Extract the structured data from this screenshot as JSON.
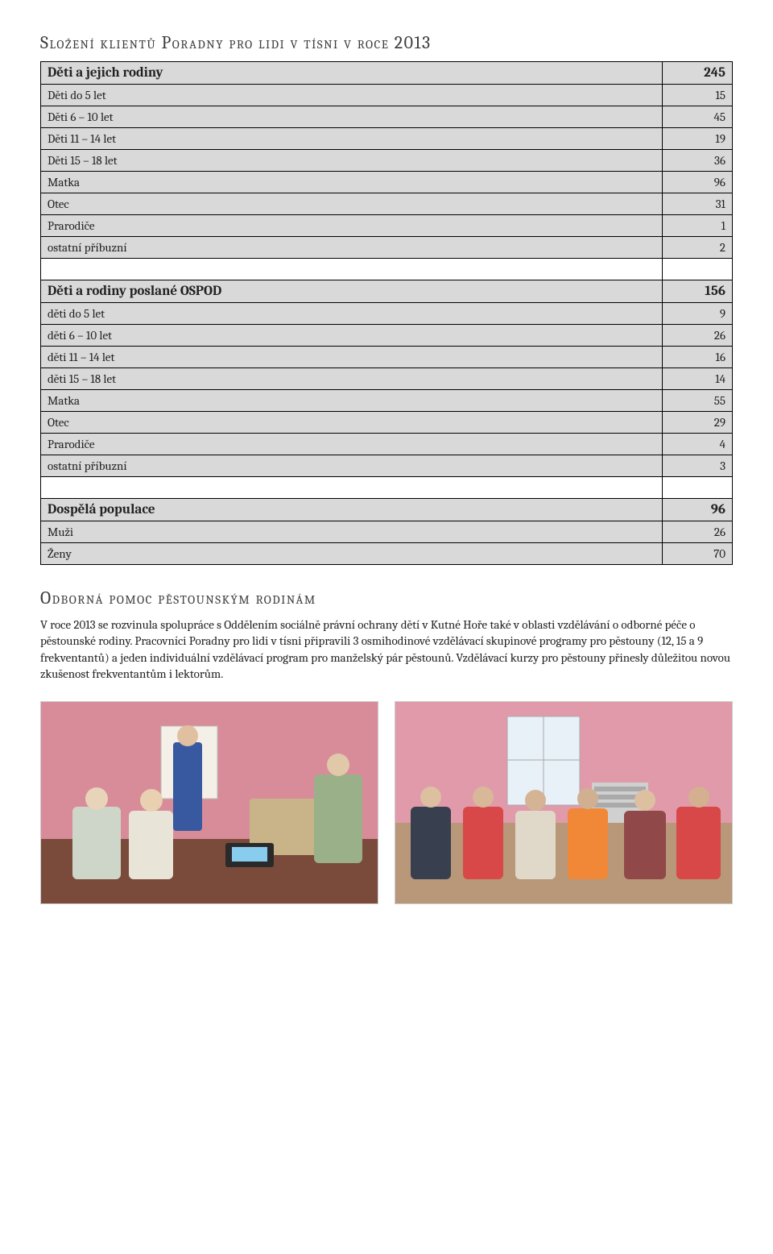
{
  "section1": {
    "title": "Složení klientů Poradny pro lidi v tísni v roce 2013",
    "group1": {
      "header": {
        "label": "Děti a jejich rodiny",
        "value": "245"
      },
      "rows": [
        {
          "label": "Děti do 5 let",
          "value": "15"
        },
        {
          "label": "Děti 6 – 10 let",
          "value": "45"
        },
        {
          "label": "Děti 11 – 14 let",
          "value": "19"
        },
        {
          "label": "Děti 15 – 18 let",
          "value": "36"
        },
        {
          "label": "Matka",
          "value": "96"
        },
        {
          "label": "Otec",
          "value": "31"
        },
        {
          "label": "Prarodiče",
          "value": "1"
        },
        {
          "label": "ostatní příbuzní",
          "value": "2"
        }
      ]
    },
    "group2": {
      "header": {
        "label": "Děti a rodiny poslané OSPOD",
        "value": "156"
      },
      "rows": [
        {
          "label": "děti do 5 let",
          "value": "9"
        },
        {
          "label": "děti 6 – 10 let",
          "value": "26"
        },
        {
          "label": "děti 11 – 14 let",
          "value": "16"
        },
        {
          "label": "děti 15 – 18 let",
          "value": "14"
        },
        {
          "label": "Matka",
          "value": "55"
        },
        {
          "label": "Otec",
          "value": "29"
        },
        {
          "label": "Prarodiče",
          "value": "4"
        },
        {
          "label": "ostatní příbuzní",
          "value": "3"
        }
      ]
    },
    "group3": {
      "header": {
        "label": "Dospělá populace",
        "value": "96"
      },
      "rows": [
        {
          "label": "Muži",
          "value": "26"
        },
        {
          "label": "Ženy",
          "value": "70"
        }
      ]
    }
  },
  "section2": {
    "title": "Odborná pomoc pěstounským rodinám",
    "paragraph": "V roce 2013 se rozvinula spolupráce s Oddělením sociálně právní ochrany dětí v Kutné Hoře také v oblasti vzdělávání o odborné péče o pěstounské rodiny. Pracovníci Poradny pro lidi v tísni připravili 3 osmihodinové vzdělávací skupinové programy pro pěstouny (12, 15 a 9 frekventantů) a jeden individuální vzdělávací program pro manželský pár pěstounů. Vzdělávací kurzy pro pěstouny přinesly důležitou novou zkušenost frekventantům i lektorům."
  },
  "colors": {
    "cell_bg": "#d9d9d9",
    "border": "#000000",
    "text": "#222222",
    "title": "#3b3b3b"
  }
}
